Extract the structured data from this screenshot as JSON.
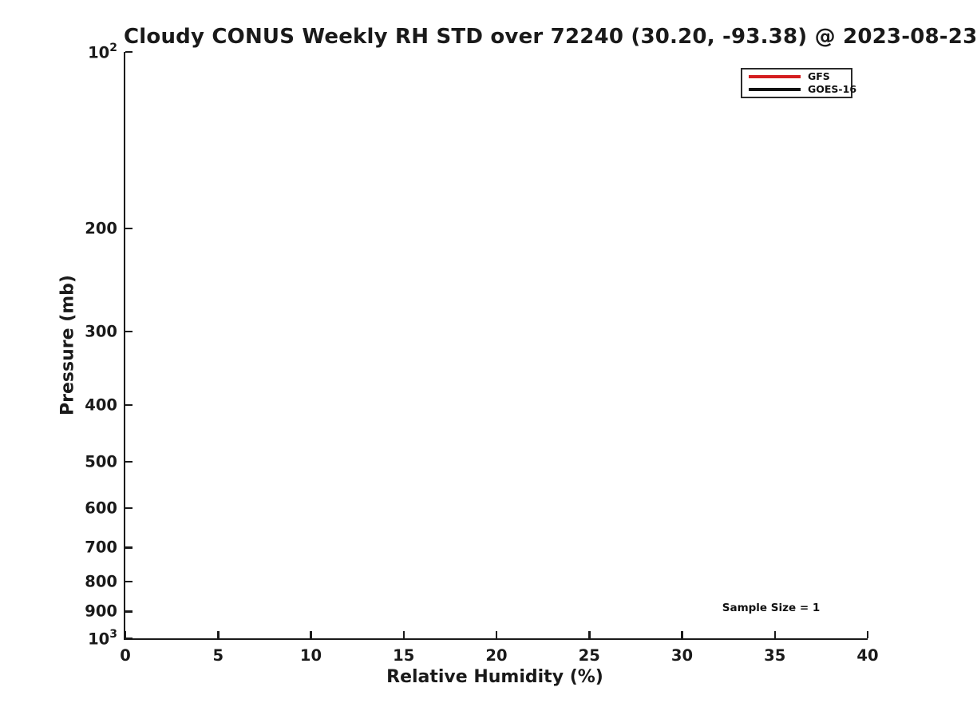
{
  "colors": {
    "background": "#ffffff",
    "axis": "#1a1a1a",
    "text": "#1a1a1a",
    "gfs_red": "#d41d1f",
    "goes_black": "#111111"
  },
  "chart_data": {
    "type": "line",
    "title": "Cloudy CONUS Weekly RH STD over 72240 (30.20, -93.38) @ 2023-08-23",
    "xlabel": "Relative Humidity (%)",
    "ylabel": "Pressure (mb)",
    "grid": false,
    "x_axis": {
      "min": 0,
      "max": 40,
      "scale": "linear",
      "tick_values": [
        0,
        5,
        10,
        15,
        20,
        25,
        30,
        35,
        40
      ],
      "tick_labels": [
        "0",
        "5",
        "10",
        "15",
        "20",
        "25",
        "30",
        "35",
        "40"
      ]
    },
    "y_axis": {
      "min": 100,
      "max": 1000,
      "scale": "log10",
      "inverted": true,
      "tick_values": [
        100,
        200,
        300,
        400,
        500,
        600,
        700,
        800,
        900,
        1000
      ],
      "tick_labels": [
        "10^2",
        "200",
        "300",
        "400",
        "500",
        "600",
        "700",
        "800",
        "900",
        "10^3"
      ]
    },
    "series": [
      {
        "name": "GFS",
        "color": "#d41d1f",
        "points": []
      },
      {
        "name": "GOES-16",
        "color": "#111111",
        "points": []
      }
    ],
    "legend": {
      "position": "top-right",
      "entries": [
        {
          "label": "GFS",
          "color": "#d41d1f"
        },
        {
          "label": "GOES-16",
          "color": "#111111"
        }
      ]
    },
    "annotation": {
      "text": "Sample Size = 1"
    }
  }
}
